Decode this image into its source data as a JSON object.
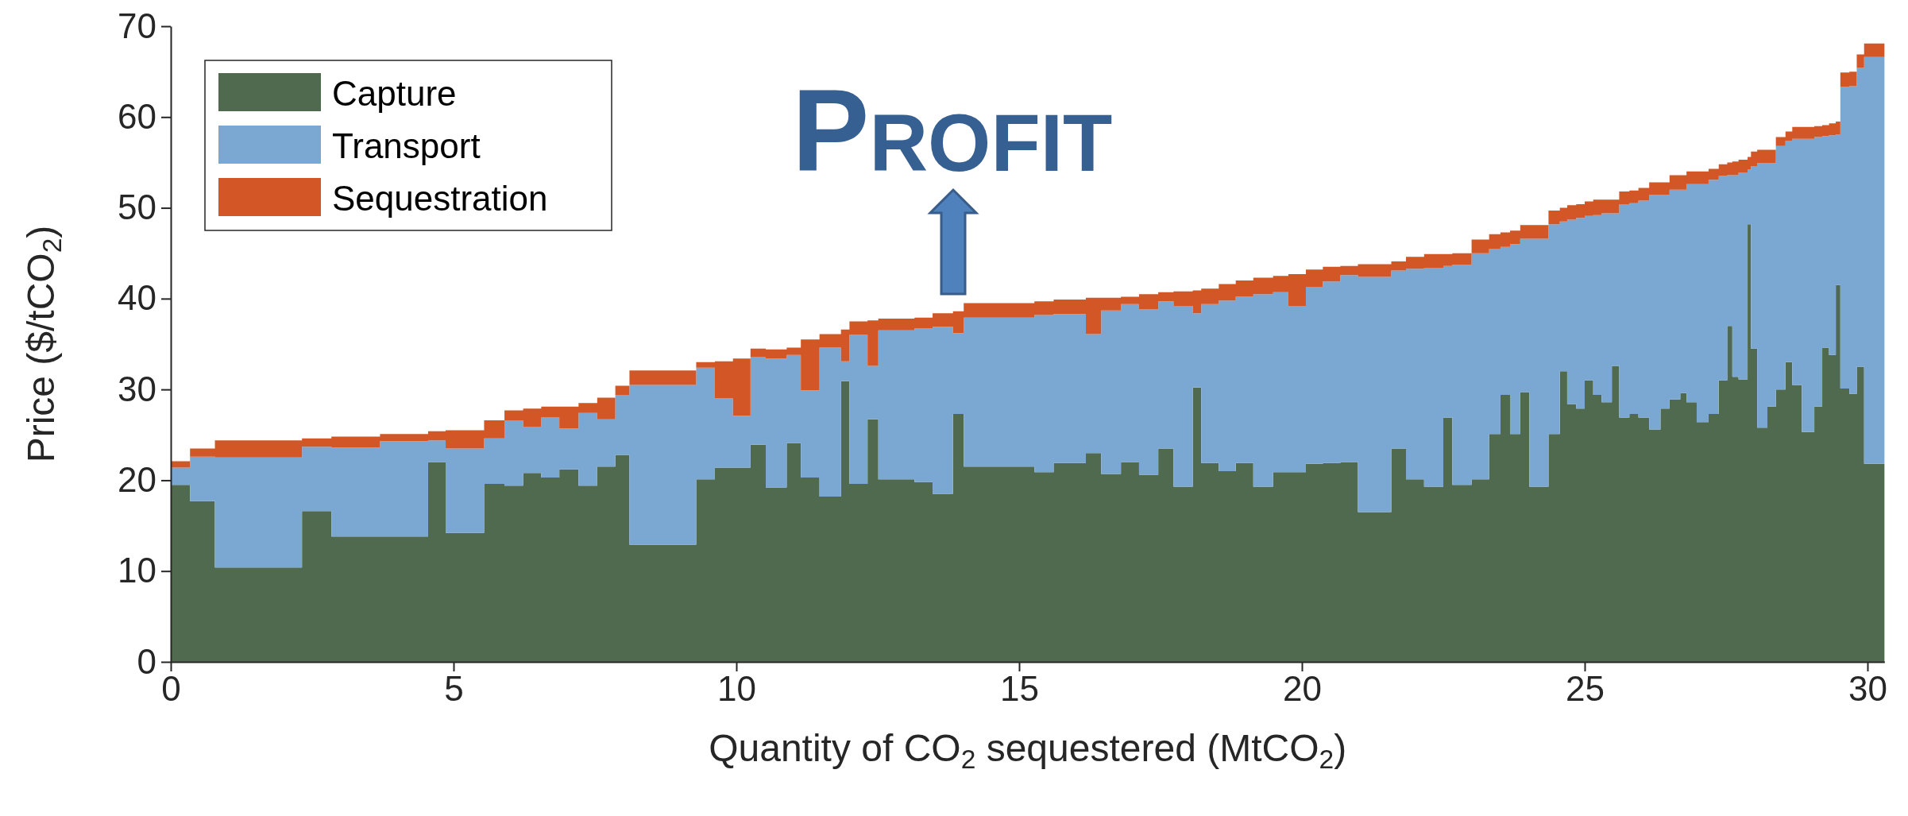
{
  "chart_data": {
    "type": "area",
    "stacked": true,
    "xlabel": "Quantity of CO$_{2}$ sequestered (MtCO$_{2}$)",
    "ylabel": "Price ($/tCO$_{2}$)",
    "annotations": [
      "Profit"
    ],
    "x": [
      0,
      0.34,
      0.34,
      0.78,
      0.78,
      2.32,
      2.32,
      2.84,
      2.84,
      3.7,
      3.7,
      4.55,
      4.55,
      4.86,
      4.86,
      5.54,
      5.54,
      5.9,
      5.9,
      6.23,
      6.23,
      6.55,
      6.55,
      6.87,
      6.87,
      7.21,
      7.21,
      7.54,
      7.54,
      7.86,
      7.86,
      8.11,
      8.11,
      9.29,
      9.29,
      9.62,
      9.62,
      9.94,
      9.94,
      10.25,
      10.25,
      10.52,
      10.52,
      10.89,
      10.89,
      11.14,
      11.14,
      11.47,
      11.47,
      11.85,
      11.85,
      12.0,
      12.0,
      12.32,
      12.32,
      12.51,
      12.51,
      13.15,
      13.15,
      13.47,
      13.47,
      13.83,
      13.83,
      14.02,
      14.02,
      15.27,
      15.27,
      15.61,
      15.61,
      16.18,
      16.18,
      16.45,
      16.45,
      16.8,
      16.8,
      17.12,
      17.12,
      17.46,
      17.46,
      17.73,
      17.73,
      18.07,
      18.07,
      18.22,
      18.22,
      18.53,
      18.53,
      18.83,
      18.83,
      19.14,
      19.14,
      19.49,
      19.49,
      19.76,
      19.76,
      20.07,
      20.07,
      20.37,
      20.37,
      20.68,
      20.68,
      20.99,
      20.99,
      21.58,
      21.58,
      21.84,
      21.84,
      22.16,
      22.16,
      22.5,
      22.5,
      22.66,
      22.66,
      23.0,
      23.0,
      23.31,
      23.31,
      23.51,
      23.51,
      23.68,
      23.68,
      23.86,
      23.86,
      24.02,
      24.02,
      24.36,
      24.36,
      24.56,
      24.56,
      24.69,
      24.69,
      24.85,
      24.85,
      25.0,
      25.0,
      25.15,
      25.15,
      25.3,
      25.3,
      25.48,
      25.48,
      25.61,
      25.61,
      25.79,
      25.79,
      25.95,
      25.95,
      26.14,
      26.14,
      26.34,
      26.34,
      26.5,
      26.5,
      26.69,
      26.69,
      26.8,
      26.8,
      26.98,
      26.98,
      27.19,
      27.19,
      27.37,
      27.37,
      27.52,
      27.52,
      27.61,
      27.61,
      27.72,
      27.72,
      27.88,
      27.88,
      27.94,
      27.94,
      28.05,
      28.05,
      28.23,
      28.23,
      28.38,
      28.38,
      28.55,
      28.55,
      28.67,
      28.67,
      28.84,
      28.84,
      29.06,
      29.06,
      29.2,
      29.2,
      29.32,
      29.32,
      29.44,
      29.44,
      29.52,
      29.52,
      29.68,
      29.68,
      29.81,
      29.81,
      29.94,
      29.94,
      30.3
    ],
    "series": [
      {
        "name": "Capture",
        "color": "#506a4f",
        "values": [
          19.5,
          19.5,
          17.7,
          17.7,
          10.4,
          10.4,
          16.6,
          16.6,
          13.8,
          13.8,
          13.8,
          13.8,
          22.0,
          22.0,
          14.2,
          14.2,
          19.6,
          19.6,
          19.4,
          19.4,
          20.8,
          20.8,
          20.3,
          20.3,
          21.2,
          21.2,
          19.4,
          19.4,
          21.5,
          21.5,
          22.8,
          22.8,
          12.9,
          12.9,
          20.1,
          20.1,
          21.4,
          21.4,
          21.4,
          21.4,
          23.9,
          23.9,
          19.2,
          19.2,
          24.1,
          24.1,
          20.3,
          20.3,
          18.2,
          18.2,
          30.9,
          30.9,
          19.6,
          19.6,
          26.7,
          26.7,
          20.1,
          20.1,
          19.8,
          19.8,
          18.5,
          18.5,
          27.3,
          27.3,
          21.5,
          21.5,
          20.9,
          20.9,
          21.9,
          21.9,
          23.0,
          23.0,
          20.7,
          20.7,
          22.0,
          22.0,
          20.6,
          20.6,
          23.5,
          23.5,
          19.3,
          19.3,
          30.2,
          30.2,
          21.9,
          21.9,
          21.0,
          21.0,
          21.9,
          21.9,
          19.3,
          19.3,
          20.9,
          20.9,
          20.9,
          20.9,
          21.8,
          21.8,
          21.9,
          21.9,
          22.0,
          22.0,
          16.5,
          16.5,
          23.5,
          23.5,
          20.1,
          20.1,
          19.3,
          19.3,
          26.9,
          26.9,
          19.5,
          19.5,
          20.1,
          20.1,
          25.1,
          25.1,
          29.4,
          29.4,
          25.1,
          25.1,
          29.7,
          29.7,
          19.3,
          19.3,
          25.1,
          25.1,
          32.0,
          32.0,
          28.4,
          28.4,
          27.9,
          27.9,
          31.0,
          31.0,
          29.4,
          29.4,
          28.6,
          28.6,
          32.6,
          32.6,
          26.9,
          26.9,
          27.3,
          27.3,
          26.9,
          26.9,
          25.6,
          25.6,
          27.9,
          27.9,
          28.9,
          28.9,
          29.6,
          29.6,
          28.6,
          28.6,
          26.4,
          26.4,
          27.3,
          27.3,
          31.0,
          31.0,
          37.0,
          37.0,
          31.4,
          31.4,
          31.1,
          31.1,
          48.2,
          48.2,
          34.5,
          34.5,
          25.8,
          25.8,
          28.1,
          28.1,
          30.0,
          30.0,
          33.0,
          33.0,
          30.5,
          30.5,
          25.3,
          25.3,
          28.1,
          28.1,
          34.6,
          34.6,
          33.8,
          33.8,
          41.5,
          41.5,
          30.1,
          30.1,
          29.5,
          29.5,
          32.5,
          32.5,
          21.8,
          21.8
        ]
      },
      {
        "name": "Transport",
        "color": "#7ba7d3",
        "values": [
          1.9,
          1.9,
          4.9,
          4.9,
          12.1,
          12.1,
          7.1,
          7.1,
          9.8,
          9.8,
          10.5,
          10.5,
          2.4,
          2.4,
          9.3,
          9.3,
          5.0,
          5.0,
          7.2,
          7.2,
          5.1,
          5.1,
          6.6,
          6.6,
          4.5,
          4.5,
          8.0,
          8.0,
          5.2,
          5.2,
          6.6,
          6.6,
          17.6,
          17.6,
          12.3,
          12.3,
          7.6,
          7.6,
          5.7,
          5.7,
          9.7,
          9.7,
          14.2,
          14.2,
          9.7,
          9.7,
          9.6,
          9.6,
          16.4,
          16.4,
          2.2,
          2.2,
          16.4,
          16.4,
          5.9,
          5.9,
          16.4,
          16.4,
          16.9,
          16.9,
          18.4,
          18.4,
          8.9,
          8.9,
          16.4,
          16.4,
          17.3,
          17.3,
          16.4,
          16.4,
          13.1,
          13.1,
          18.0,
          18.0,
          17.4,
          17.4,
          18.2,
          18.2,
          16.2,
          16.2,
          19.9,
          19.9,
          8.2,
          8.2,
          17.5,
          17.5,
          18.8,
          18.8,
          18.3,
          18.3,
          21.2,
          21.2,
          19.8,
          19.8,
          18.3,
          18.3,
          19.5,
          19.5,
          20.0,
          20.0,
          20.6,
          20.6,
          25.9,
          25.9,
          19.6,
          19.6,
          23.2,
          23.2,
          24.1,
          24.1,
          16.7,
          16.7,
          24.2,
          24.2,
          24.9,
          24.9,
          20.4,
          20.4,
          16.3,
          16.3,
          20.9,
          20.9,
          16.9,
          16.9,
          27.3,
          27.3,
          23.1,
          23.1,
          16.5,
          16.5,
          20.3,
          20.3,
          21.0,
          21.0,
          18.1,
          18.1,
          19.8,
          19.8,
          20.8,
          20.8,
          16.8,
          16.8,
          23.5,
          23.5,
          23.2,
          23.2,
          23.9,
          23.9,
          25.8,
          25.8,
          23.5,
          23.5,
          23.1,
          23.1,
          22.4,
          22.4,
          24.0,
          24.0,
          26.2,
          26.2,
          25.8,
          25.8,
          22.5,
          22.5,
          16.6,
          16.6,
          22.2,
          22.2,
          22.8,
          22.8,
          6.0,
          6.0,
          20.1,
          20.1,
          29.1,
          29.1,
          26.8,
          26.8,
          26.8,
          26.8,
          24.4,
          24.4,
          27.1,
          27.1,
          32.3,
          32.3,
          29.7,
          29.7,
          23.3,
          23.3,
          24.2,
          24.2,
          16.6,
          16.6,
          33.2,
          33.2,
          33.9,
          33.9,
          32.9,
          32.9,
          44.8,
          44.8
        ]
      },
      {
        "name": "Sequestration",
        "color": "#d35627",
        "values": [
          0.7,
          0.7,
          0.9,
          0.9,
          1.9,
          1.9,
          0.9,
          0.9,
          1.2,
          1.2,
          0.8,
          0.8,
          1.0,
          1.0,
          2.0,
          2.0,
          2.0,
          2.0,
          1.1,
          1.1,
          2.0,
          2.0,
          1.2,
          1.2,
          2.4,
          2.4,
          1.1,
          1.1,
          2.4,
          2.4,
          1.0,
          1.0,
          1.6,
          1.6,
          0.6,
          0.6,
          4.1,
          4.1,
          6.3,
          6.3,
          0.9,
          0.9,
          1.0,
          1.0,
          0.8,
          0.8,
          5.6,
          5.6,
          1.5,
          1.5,
          3.5,
          3.5,
          1.5,
          1.5,
          5.0,
          5.0,
          1.3,
          1.3,
          1.2,
          1.2,
          1.5,
          1.5,
          2.4,
          2.4,
          1.6,
          1.6,
          1.5,
          1.5,
          1.6,
          1.6,
          4.0,
          4.0,
          1.4,
          1.4,
          0.8,
          0.8,
          1.7,
          1.7,
          1.0,
          1.0,
          1.6,
          1.6,
          2.5,
          2.5,
          1.7,
          1.7,
          1.8,
          1.8,
          1.8,
          1.8,
          1.8,
          1.8,
          1.8,
          1.8,
          3.5,
          3.5,
          1.9,
          1.9,
          1.6,
          1.6,
          1.0,
          1.0,
          1.4,
          1.4,
          1.0,
          1.0,
          1.3,
          1.3,
          1.5,
          1.5,
          1.3,
          1.3,
          1.3,
          1.3,
          1.5,
          1.5,
          1.6,
          1.6,
          1.6,
          1.6,
          1.5,
          1.5,
          1.5,
          1.5,
          1.5,
          1.5,
          1.5,
          1.5,
          1.5,
          1.5,
          1.6,
          1.6,
          1.5,
          1.5,
          1.6,
          1.6,
          1.7,
          1.7,
          1.5,
          1.5,
          1.5,
          1.5,
          1.4,
          1.4,
          1.4,
          1.4,
          1.4,
          1.4,
          1.4,
          1.4,
          1.4,
          1.4,
          1.6,
          1.6,
          1.6,
          1.6,
          1.4,
          1.4,
          1.4,
          1.4,
          1.2,
          1.2,
          1.3,
          1.3,
          1.4,
          1.4,
          1.5,
          1.5,
          1.4,
          1.4,
          1.4,
          1.4,
          1.6,
          1.6,
          1.5,
          1.5,
          1.5,
          1.5,
          1.0,
          1.0,
          1.0,
          1.0,
          1.3,
          1.3,
          1.3,
          1.3,
          1.2,
          1.2,
          1.2,
          1.2,
          1.3,
          1.3,
          1.4,
          1.4,
          1.6,
          1.6,
          1.6,
          1.6,
          1.5,
          1.5,
          1.5,
          1.5
        ]
      }
    ],
    "xlim": [
      0,
      30.3
    ],
    "xticks": [
      0,
      5,
      10,
      15,
      20,
      25,
      30
    ],
    "ylim": [
      0,
      70
    ],
    "yticks": [
      0,
      10,
      20,
      30,
      40,
      50,
      60,
      70
    ],
    "legend": "top left"
  }
}
